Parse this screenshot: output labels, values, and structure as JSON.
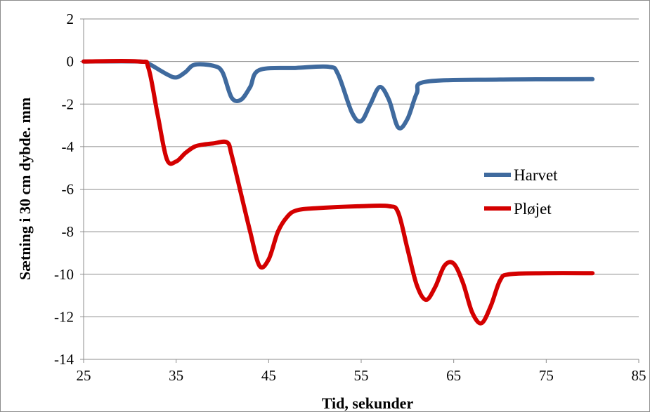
{
  "chart_data": {
    "type": "line",
    "title": "",
    "xlabel": "Tid, sekunder",
    "ylabel": "Sætning i 30 cm dybde. mm",
    "xlim": [
      25,
      85
    ],
    "ylim": [
      -14,
      2
    ],
    "xticks": [
      25,
      35,
      45,
      55,
      65,
      75,
      85
    ],
    "yticks": [
      2,
      0,
      -2,
      -4,
      -6,
      -8,
      -10,
      -12,
      -14
    ],
    "grid": "horizontal",
    "legend_position": "right",
    "series": [
      {
        "name": "Harvet",
        "color": "#3F6A9E",
        "x": [
          25,
          31,
          32,
          34,
          35,
          36,
          37,
          39,
          40,
          41,
          42,
          43,
          44,
          48,
          51.5,
          52.5,
          54,
          55,
          56,
          57,
          58,
          59,
          60,
          61,
          62,
          70,
          80
        ],
        "y": [
          0,
          0,
          -0.1,
          -0.6,
          -0.75,
          -0.5,
          -0.15,
          -0.2,
          -0.5,
          -1.7,
          -1.8,
          -1.2,
          -0.4,
          -0.3,
          -0.25,
          -0.6,
          -2.4,
          -2.8,
          -2.0,
          -1.2,
          -1.8,
          -3.1,
          -2.7,
          -1.5,
          -0.95,
          -0.85,
          -0.83
        ]
      },
      {
        "name": "Pløjet",
        "color": "#D40000",
        "x": [
          25,
          31,
          32,
          33,
          34,
          35,
          36,
          37,
          38,
          39,
          40.5,
          41,
          42,
          43,
          44,
          45,
          46,
          47,
          48,
          50,
          55,
          58,
          59,
          60,
          61,
          62,
          63,
          64,
          65,
          66,
          67,
          68,
          69,
          70,
          71,
          75,
          80
        ],
        "y": [
          0,
          0,
          -0.3,
          -2.5,
          -4.6,
          -4.7,
          -4.3,
          -4.0,
          -3.9,
          -3.85,
          -3.8,
          -4.4,
          -6.2,
          -8.0,
          -9.6,
          -9.3,
          -8.0,
          -7.3,
          -7.0,
          -6.9,
          -6.8,
          -6.8,
          -7.1,
          -8.8,
          -10.5,
          -11.2,
          -10.6,
          -9.6,
          -9.5,
          -10.4,
          -11.8,
          -12.3,
          -11.5,
          -10.3,
          -10.0,
          -9.95,
          -9.95
        ]
      }
    ]
  }
}
